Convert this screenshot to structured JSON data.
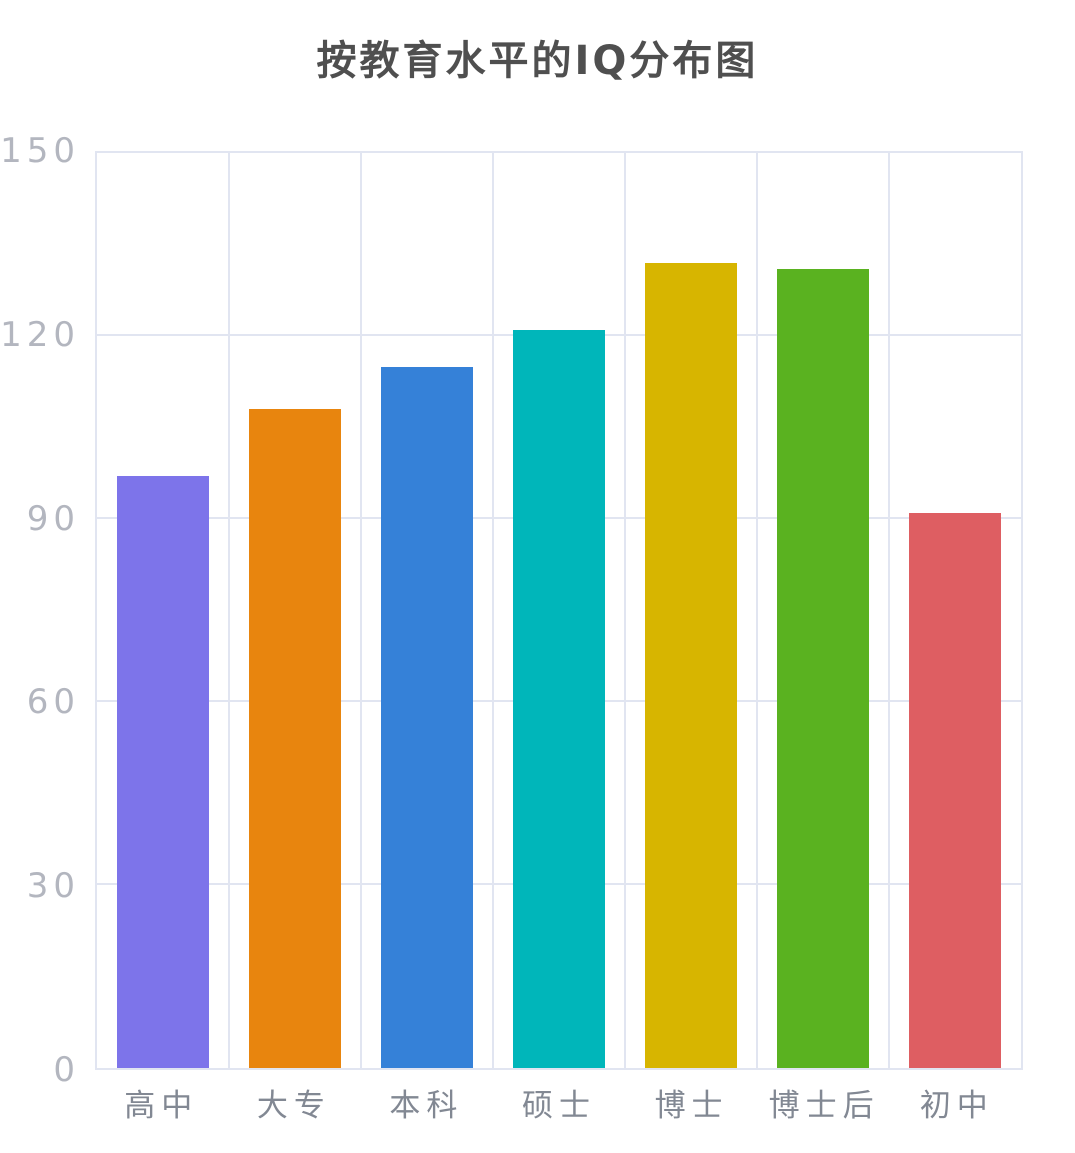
{
  "page": {
    "background_color": "#ffffff"
  },
  "chart_data": {
    "type": "bar",
    "title": "按教育水平的IQ分布图",
    "xlabel": "",
    "ylabel": "",
    "categories": [
      "高中",
      "大专",
      "本科",
      "硕士",
      "博士",
      "博士后",
      "初中"
    ],
    "values": [
      97,
      108,
      115,
      121,
      132,
      131,
      91
    ],
    "bar_colors": [
      "#7d74ea",
      "#e8850e",
      "#3581d8",
      "#00b6ba",
      "#d7b500",
      "#5ab220",
      "#de5e62"
    ],
    "ylim": [
      0,
      150
    ],
    "yticks": [
      0,
      30,
      60,
      90,
      120,
      150
    ],
    "grid": "both",
    "legend": "none",
    "plot_border": true,
    "colors": {
      "title": "#4f4f4f",
      "grid": "#e1e5f1",
      "y_tick_label": "#b3b6bf",
      "x_tick_label": "#828893",
      "background": "#ffffff"
    }
  }
}
